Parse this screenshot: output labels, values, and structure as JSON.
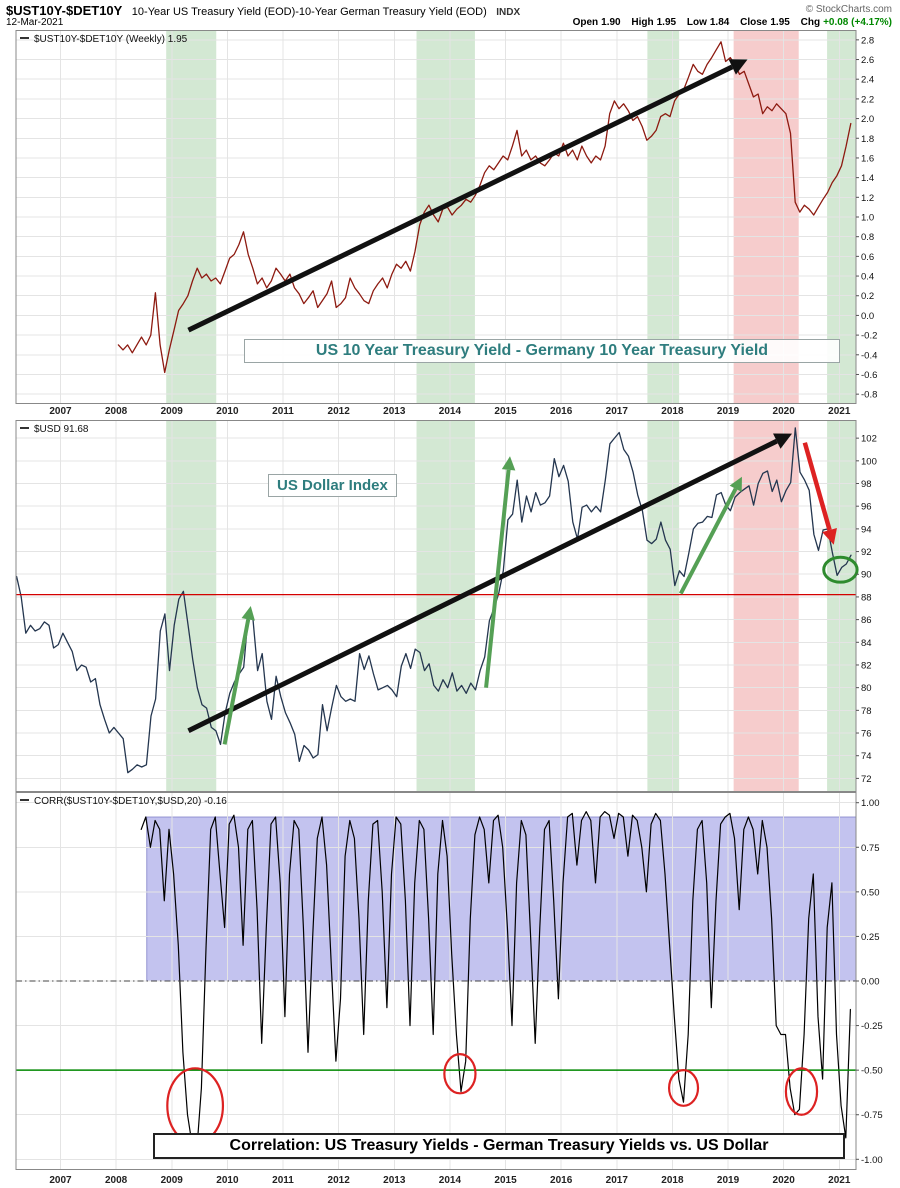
{
  "header": {
    "symbol": "$UST10Y-$DET10Y",
    "description": "10-Year US Treasury Yield (EOD)-10-Year German Treasury Yield (EOD)",
    "exchange": "INDX",
    "copyright": "© StockCharts.com",
    "date": "12-Mar-2021",
    "quote": {
      "open_label": "Open",
      "open": "1.90",
      "high_label": "High",
      "high": "1.95",
      "low_label": "Low",
      "low": "1.84",
      "close_label": "Close",
      "close": "1.95",
      "chg_label": "Chg",
      "chg": "+0.08 (+4.17%)"
    }
  },
  "colors": {
    "green_band": "rgba(128,188,128,0.35)",
    "red_band": "rgba(232,128,128,0.40)",
    "blue_box_fill": "rgba(112,112,216,0.42)",
    "blue_box_stroke": "rgba(90,90,180,0.55)",
    "grid": "#e4e4e4",
    "border": "#888888",
    "axis_text": "#111111",
    "teal_label_text": "#2e7d7e",
    "chg_green": "#008800"
  },
  "chart_data": [
    {
      "type": "line",
      "title": "$UST10Y-$DET10Y (Weekly) 1.95",
      "series_name": "$UST10Y-$DET10Y",
      "annotation": "US 10 Year Treasury Yield - Germany 10 Year Treasury Yield",
      "color": "#8d1a10",
      "line_width": 1.3,
      "xlim": [
        2006.2,
        2021.3
      ],
      "xticks": [
        2007,
        2008,
        2009,
        2010,
        2011,
        2012,
        2013,
        2014,
        2015,
        2016,
        2017,
        2018,
        2019,
        2020,
        2021
      ],
      "ylim": [
        -0.9,
        2.9
      ],
      "yticks": [
        2.8,
        2.6,
        2.4,
        2.2,
        2.0,
        1.8,
        1.6,
        1.4,
        1.2,
        1.0,
        0.8,
        0.6,
        0.4,
        0.2,
        0.0,
        -0.2,
        -0.4,
        -0.6,
        -0.8
      ],
      "ydec": 1,
      "x_start": 2008.04,
      "x_step": 0.08333,
      "values": [
        -0.3,
        -0.35,
        -0.3,
        -0.38,
        -0.3,
        -0.22,
        -0.3,
        -0.2,
        0.23,
        -0.3,
        -0.58,
        -0.35,
        -0.15,
        0.05,
        0.12,
        0.2,
        0.35,
        0.48,
        0.38,
        0.42,
        0.35,
        0.38,
        0.32,
        0.45,
        0.58,
        0.62,
        0.72,
        0.85,
        0.62,
        0.48,
        0.32,
        0.38,
        0.28,
        0.35,
        0.48,
        0.42,
        0.35,
        0.42,
        0.28,
        0.22,
        0.12,
        0.18,
        0.25,
        0.08,
        0.15,
        0.22,
        0.35,
        0.08,
        0.12,
        0.18,
        0.38,
        0.28,
        0.22,
        0.15,
        0.12,
        0.25,
        0.32,
        0.38,
        0.28,
        0.42,
        0.52,
        0.48,
        0.55,
        0.45,
        0.65,
        0.92,
        1.05,
        1.12,
        1.02,
        0.95,
        1.08,
        1.1,
        1.02,
        1.08,
        1.12,
        1.18,
        1.15,
        1.22,
        1.32,
        1.45,
        1.52,
        1.48,
        1.55,
        1.62,
        1.58,
        1.72,
        1.88,
        1.62,
        1.68,
        1.58,
        1.62,
        1.55,
        1.52,
        1.58,
        1.65,
        1.62,
        1.75,
        1.62,
        1.68,
        1.58,
        1.72,
        1.62,
        1.55,
        1.62,
        1.58,
        1.72,
        2.05,
        2.18,
        2.1,
        2.15,
        2.08,
        1.98,
        2.02,
        1.92,
        1.78,
        1.82,
        1.88,
        2.02,
        2.05,
        2.02,
        2.18,
        2.25,
        2.3,
        2.42,
        2.55,
        2.48,
        2.45,
        2.55,
        2.62,
        2.7,
        2.78,
        2.58,
        2.62,
        2.55,
        2.45,
        2.48,
        2.35,
        2.22,
        2.25,
        2.05,
        2.12,
        2.08,
        2.15,
        2.1,
        2.05,
        1.85,
        1.15,
        1.05,
        1.12,
        1.08,
        1.02,
        1.1,
        1.18,
        1.25,
        1.35,
        1.42,
        1.52,
        1.72,
        1.95
      ],
      "bands_green": [
        [
          2008.9,
          2009.8
        ],
        [
          2013.4,
          2014.45
        ],
        [
          2017.55,
          2018.12
        ],
        [
          2020.78,
          2021.3
        ]
      ],
      "bands_red": [
        [
          2019.1,
          2020.27
        ]
      ],
      "arrows": [
        {
          "from": [
            2009.3,
            -0.15
          ],
          "to": [
            2019.35,
            2.6
          ],
          "color": "#111111",
          "width": 5
        }
      ]
    },
    {
      "type": "line",
      "title": "$USD 91.68",
      "series_name": "$USD",
      "annotation": "US Dollar Index",
      "color": "#24364f",
      "line_width": 1.3,
      "xlim": [
        2006.2,
        2021.3
      ],
      "xticks": [
        2007,
        2008,
        2009,
        2010,
        2011,
        2012,
        2013,
        2014,
        2015,
        2016,
        2017,
        2018,
        2019,
        2020,
        2021
      ],
      "ylim": [
        70.8,
        103.6
      ],
      "yticks": [
        102,
        100,
        98,
        96,
        94,
        92,
        90,
        88,
        86,
        84,
        82,
        80,
        78,
        76,
        74,
        72
      ],
      "ydec": 0,
      "x_start": 2006.21,
      "x_step": 0.08333,
      "values": [
        89.8,
        88.0,
        84.8,
        85.5,
        85.0,
        85.2,
        85.8,
        85.5,
        83.5,
        83.8,
        84.8,
        84.0,
        83.2,
        81.5,
        82.0,
        81.8,
        80.5,
        80.8,
        78.5,
        77.2,
        76.0,
        76.5,
        76.0,
        75.5,
        72.5,
        72.8,
        73.2,
        73.0,
        73.2,
        77.5,
        79.0,
        85.0,
        86.5,
        81.5,
        85.5,
        87.8,
        88.5,
        85.5,
        82.5,
        80.0,
        78.5,
        78.2,
        76.5,
        76.2,
        75.0,
        77.8,
        79.5,
        80.5,
        81.2,
        81.8,
        86.5,
        86.0,
        81.5,
        83.0,
        78.8,
        77.2,
        81.0,
        79.2,
        77.8,
        76.9,
        75.9,
        73.5,
        74.9,
        74.5,
        73.8,
        74.1,
        78.5,
        76.2,
        78.3,
        80.2,
        79.2,
        78.8,
        79.0,
        78.8,
        83.0,
        81.6,
        82.8,
        81.2,
        79.8,
        80.0,
        80.2,
        79.8,
        79.2,
        81.9,
        83.0,
        81.7,
        83.4,
        83.1,
        81.5,
        82.1,
        80.2,
        79.7,
        80.7,
        80.0,
        81.3,
        79.7,
        80.2,
        79.5,
        80.4,
        79.8,
        81.5,
        82.7,
        85.9,
        87.0,
        88.3,
        90.3,
        94.8,
        95.3,
        98.3,
        94.6,
        96.9,
        95.5,
        97.2,
        96.1,
        96.3,
        96.9,
        100.2,
        98.6,
        99.6,
        98.2,
        94.6,
        93.1,
        95.9,
        96.1,
        95.5,
        96.0,
        95.5,
        98.3,
        101.5,
        102.0,
        102.5,
        101.0,
        100.4,
        99.0,
        97.0,
        95.6,
        93.0,
        92.7,
        93.1,
        94.6,
        93.0,
        92.2,
        89.0,
        90.3,
        89.8,
        91.8,
        94.0,
        94.5,
        94.6,
        95.1,
        95.0,
        97.0,
        97.2,
        96.1,
        95.6,
        96.8,
        97.2,
        97.5,
        97.8,
        96.1,
        98.0,
        98.9,
        99.1,
        97.3,
        98.3,
        96.4,
        97.4,
        98.1,
        102.9,
        99.0,
        98.3,
        97.4,
        93.5,
        92.1,
        93.9,
        94.0,
        91.9,
        89.9,
        90.6,
        90.9,
        91.68
      ],
      "bands_green": [
        [
          2008.9,
          2009.8
        ],
        [
          2013.4,
          2014.45
        ],
        [
          2017.55,
          2018.12
        ],
        [
          2020.78,
          2021.3
        ]
      ],
      "bands_red": [
        [
          2019.1,
          2020.27
        ]
      ],
      "hlines": [
        {
          "v": 88.2,
          "color": "#d40000",
          "width": 1.3
        }
      ],
      "arrows": [
        {
          "from": [
            2009.3,
            76.2
          ],
          "to": [
            2020.15,
            102.4
          ],
          "color": "#111111",
          "width": 5
        },
        {
          "from": [
            2009.95,
            75.0
          ],
          "to": [
            2010.42,
            87.2
          ],
          "color": "#55a055",
          "width": 4
        },
        {
          "from": [
            2014.65,
            80.0
          ],
          "to": [
            2015.08,
            100.4
          ],
          "color": "#55a055",
          "width": 4
        },
        {
          "from": [
            2018.15,
            88.3
          ],
          "to": [
            2019.25,
            98.6
          ],
          "color": "#55a055",
          "width": 4
        },
        {
          "from": [
            2020.38,
            101.6
          ],
          "to": [
            2020.9,
            92.6
          ],
          "color": "#dd2222",
          "width": 4.5
        }
      ],
      "ellipses": [
        {
          "cx": 2021.02,
          "cy": 90.4,
          "rx": 0.3,
          "ry": 1.1,
          "color": "#2e8b2e",
          "width": 3
        }
      ]
    },
    {
      "type": "line",
      "title": "CORR($UST10Y-$DET10Y,$USD,20) -0.16",
      "series_name": "Correlation",
      "annotation": "Correlation:  US Treasury Yields - German Treasury Yields vs. US Dollar",
      "color": "#000000",
      "line_width": 1.2,
      "xlim": [
        2006.2,
        2021.3
      ],
      "xticks": [
        2007,
        2008,
        2009,
        2010,
        2011,
        2012,
        2013,
        2014,
        2015,
        2016,
        2017,
        2018,
        2019,
        2020,
        2021
      ],
      "ylim": [
        -1.06,
        1.06
      ],
      "yticks": [
        1.0,
        0.75,
        0.5,
        0.25,
        0.0,
        -0.25,
        -0.5,
        -0.75,
        -1.0
      ],
      "ydec": 2,
      "x_start": 2008.45,
      "x_step": 0.08333,
      "values": [
        0.85,
        0.92,
        0.75,
        0.9,
        0.85,
        0.45,
        0.85,
        0.6,
        0.2,
        -0.4,
        -0.75,
        -0.92,
        -0.95,
        -0.6,
        0.2,
        0.85,
        0.92,
        0.6,
        0.3,
        0.88,
        0.93,
        0.75,
        0.2,
        0.85,
        0.9,
        0.4,
        -0.35,
        0.3,
        0.88,
        0.92,
        0.55,
        -0.2,
        0.6,
        0.9,
        0.85,
        0.3,
        -0.4,
        0.25,
        0.8,
        0.92,
        0.65,
        0.1,
        -0.45,
        -0.1,
        0.7,
        0.9,
        0.8,
        0.35,
        -0.3,
        0.45,
        0.88,
        0.9,
        0.5,
        -0.15,
        0.6,
        0.92,
        0.88,
        0.45,
        -0.25,
        0.55,
        0.9,
        0.85,
        0.35,
        -0.3,
        0.6,
        0.9,
        0.7,
        0.15,
        -0.3,
        -0.62,
        -0.45,
        0.35,
        0.82,
        0.92,
        0.85,
        0.55,
        0.9,
        0.93,
        0.75,
        0.3,
        -0.25,
        0.55,
        0.9,
        0.82,
        0.25,
        -0.35,
        0.3,
        0.85,
        0.9,
        0.45,
        -0.1,
        0.55,
        0.92,
        0.94,
        0.65,
        0.9,
        0.95,
        0.9,
        0.55,
        0.92,
        0.95,
        0.93,
        0.8,
        0.94,
        0.92,
        0.7,
        0.93,
        0.9,
        0.75,
        0.5,
        0.88,
        0.94,
        0.9,
        0.6,
        0.2,
        -0.2,
        -0.55,
        -0.68,
        -0.3,
        0.45,
        0.85,
        0.9,
        0.55,
        -0.15,
        0.45,
        0.88,
        0.92,
        0.94,
        0.8,
        0.4,
        0.85,
        0.92,
        0.85,
        0.6,
        0.9,
        0.75,
        0.35,
        -0.25,
        -0.3,
        -0.3,
        -0.6,
        -0.75,
        -0.72,
        -0.3,
        0.35,
        0.6,
        -0.2,
        -0.55,
        0.3,
        0.55,
        -0.3,
        -0.7,
        -0.88,
        -0.16
      ],
      "hlines": [
        {
          "v": -0.5,
          "color": "#008800",
          "width": 1.5
        },
        {
          "v": 0,
          "color": "#444444",
          "width": 1,
          "dash": "6 3 1.5 3"
        }
      ],
      "box": {
        "x0": 2008.55,
        "x1": 2021.3,
        "v0": 0,
        "v1": 0.92
      },
      "ellipses": [
        {
          "cx": 2009.42,
          "cy": -0.7,
          "rx": 0.5,
          "ry": 0.21,
          "color": "#dd2222",
          "width": 2.2
        },
        {
          "cx": 2014.18,
          "cy": -0.52,
          "rx": 0.28,
          "ry": 0.11,
          "color": "#dd2222",
          "width": 2.2
        },
        {
          "cx": 2018.2,
          "cy": -0.6,
          "rx": 0.26,
          "ry": 0.1,
          "color": "#dd2222",
          "width": 2.2
        },
        {
          "cx": 2020.32,
          "cy": -0.62,
          "rx": 0.28,
          "ry": 0.13,
          "color": "#dd2222",
          "width": 2.2
        }
      ]
    }
  ]
}
